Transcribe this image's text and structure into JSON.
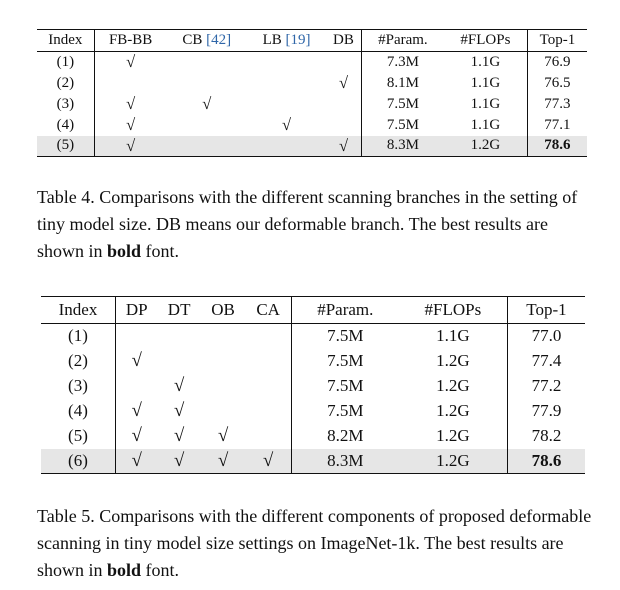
{
  "table4": {
    "headers": [
      "Index",
      "FB-BB",
      "CB",
      "[42]",
      "LB",
      "[19]",
      "DB",
      "#Param.",
      "#FLOPs",
      "Top-1"
    ],
    "rows": [
      {
        "index": "(1)",
        "fbbb": "√",
        "cb": "",
        "lb": "",
        "db": "",
        "param": "7.3M",
        "flops": "1.1G",
        "top1": "76.9"
      },
      {
        "index": "(2)",
        "fbbb": "",
        "cb": "",
        "lb": "",
        "db": "√",
        "param": "8.1M",
        "flops": "1.1G",
        "top1": "76.5"
      },
      {
        "index": "(3)",
        "fbbb": "√",
        "cb": "√",
        "lb": "",
        "db": "",
        "param": "7.5M",
        "flops": "1.1G",
        "top1": "77.3"
      },
      {
        "index": "(4)",
        "fbbb": "√",
        "cb": "",
        "lb": "√",
        "db": "",
        "param": "7.5M",
        "flops": "1.1G",
        "top1": "77.1"
      },
      {
        "index": "(5)",
        "fbbb": "√",
        "cb": "",
        "lb": "",
        "db": "√",
        "param": "8.3M",
        "flops": "1.2G",
        "top1": "78.6"
      }
    ],
    "caption_part1": "Table 4. Comparisons with the different scanning branches in the setting of tiny model size. DB means our deformable branch. The best results are shown in ",
    "caption_bold": "bold",
    "caption_part2": " font."
  },
  "table5": {
    "headers": [
      "Index",
      "DP",
      "DT",
      "OB",
      "CA",
      "#Param.",
      "#FLOPs",
      "Top-1"
    ],
    "rows": [
      {
        "index": "(1)",
        "dp": "",
        "dt": "",
        "ob": "",
        "ca": "",
        "param": "7.5M",
        "flops": "1.1G",
        "top1": "77.0"
      },
      {
        "index": "(2)",
        "dp": "√",
        "dt": "",
        "ob": "",
        "ca": "",
        "param": "7.5M",
        "flops": "1.2G",
        "top1": "77.4"
      },
      {
        "index": "(3)",
        "dp": "",
        "dt": "√",
        "ob": "",
        "ca": "",
        "param": "7.5M",
        "flops": "1.2G",
        "top1": "77.2"
      },
      {
        "index": "(4)",
        "dp": "√",
        "dt": "√",
        "ob": "",
        "ca": "",
        "param": "7.5M",
        "flops": "1.2G",
        "top1": "77.9"
      },
      {
        "index": "(5)",
        "dp": "√",
        "dt": "√",
        "ob": "√",
        "ca": "",
        "param": "8.2M",
        "flops": "1.2G",
        "top1": "78.2"
      },
      {
        "index": "(6)",
        "dp": "√",
        "dt": "√",
        "ob": "√",
        "ca": "√",
        "param": "8.3M",
        "flops": "1.2G",
        "top1": "78.6"
      }
    ],
    "caption_part1": "Table 5. Comparisons with the different components of proposed deformable scanning in tiny model size settings on ImageNet-1k. The best results are shown in ",
    "caption_bold": "bold",
    "caption_part2": " font."
  }
}
